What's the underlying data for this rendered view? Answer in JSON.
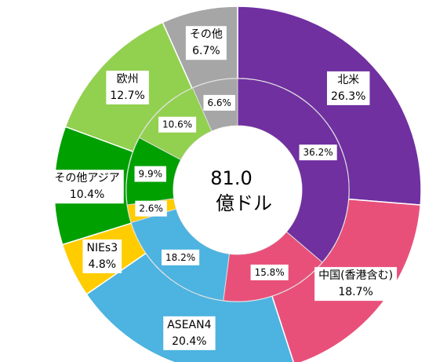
{
  "chart_data": {
    "type": "donut",
    "center_text": [
      "81.0",
      "億ドル"
    ],
    "categories": [
      "北米",
      "中国(香港含む)",
      "ASEAN4",
      "NIEs3",
      "その他アジア",
      "欧州",
      "その他"
    ],
    "colors": [
      "#7030a0",
      "#e8507a",
      "#4db3e0",
      "#ffcc00",
      "#00a000",
      "#92d050",
      "#a6a6a6"
    ],
    "series": [
      {
        "values": [
          26.3,
          18.7,
          20.4,
          4.8,
          10.4,
          12.7,
          6.7
        ],
        "value_labels": [
          "26.3%",
          "18.7%",
          "20.4%",
          "4.8%",
          "10.4%",
          "12.7%",
          "6.7%"
        ]
      },
      {
        "values": [
          36.2,
          15.8,
          18.2,
          2.6,
          9.9,
          10.6,
          6.6
        ],
        "value_labels": [
          "36.2%",
          "15.8%",
          "18.2%",
          "2.6%",
          "9.9%",
          "10.6%",
          "6.6%"
        ]
      }
    ]
  }
}
